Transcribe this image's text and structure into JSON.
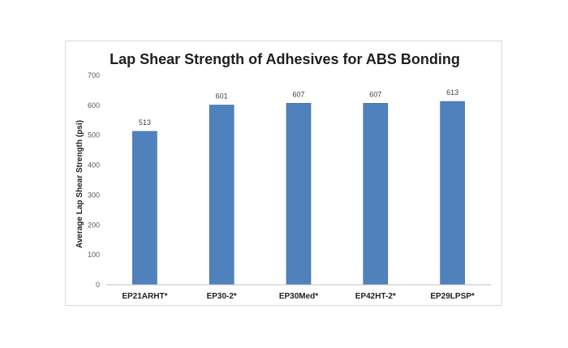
{
  "chart_data": {
    "type": "bar",
    "title": "Lap Shear Strength of Adhesives for ABS Bonding",
    "xlabel": "",
    "ylabel": "Average Lap Shear Strength (psi)",
    "categories": [
      "EP21ARHT*",
      "EP30-2*",
      "EP30Med*",
      "EP42HT-2*",
      "EP29LPSP*"
    ],
    "values": [
      513,
      601,
      607,
      607,
      613
    ],
    "data_labels": [
      "513",
      "601",
      "607",
      "607",
      "613"
    ],
    "ylim": [
      0,
      700
    ],
    "yticks": [
      0,
      100,
      200,
      300,
      400,
      500,
      600,
      700
    ],
    "ytick_labels": [
      "0",
      "100",
      "200",
      "300",
      "400",
      "500",
      "600",
      "700"
    ],
    "grid": false,
    "legend": "none",
    "colors": {
      "bar": "#4f81bd",
      "bar_border": "#3c6a9f",
      "axis": "#bfbfbf"
    }
  }
}
